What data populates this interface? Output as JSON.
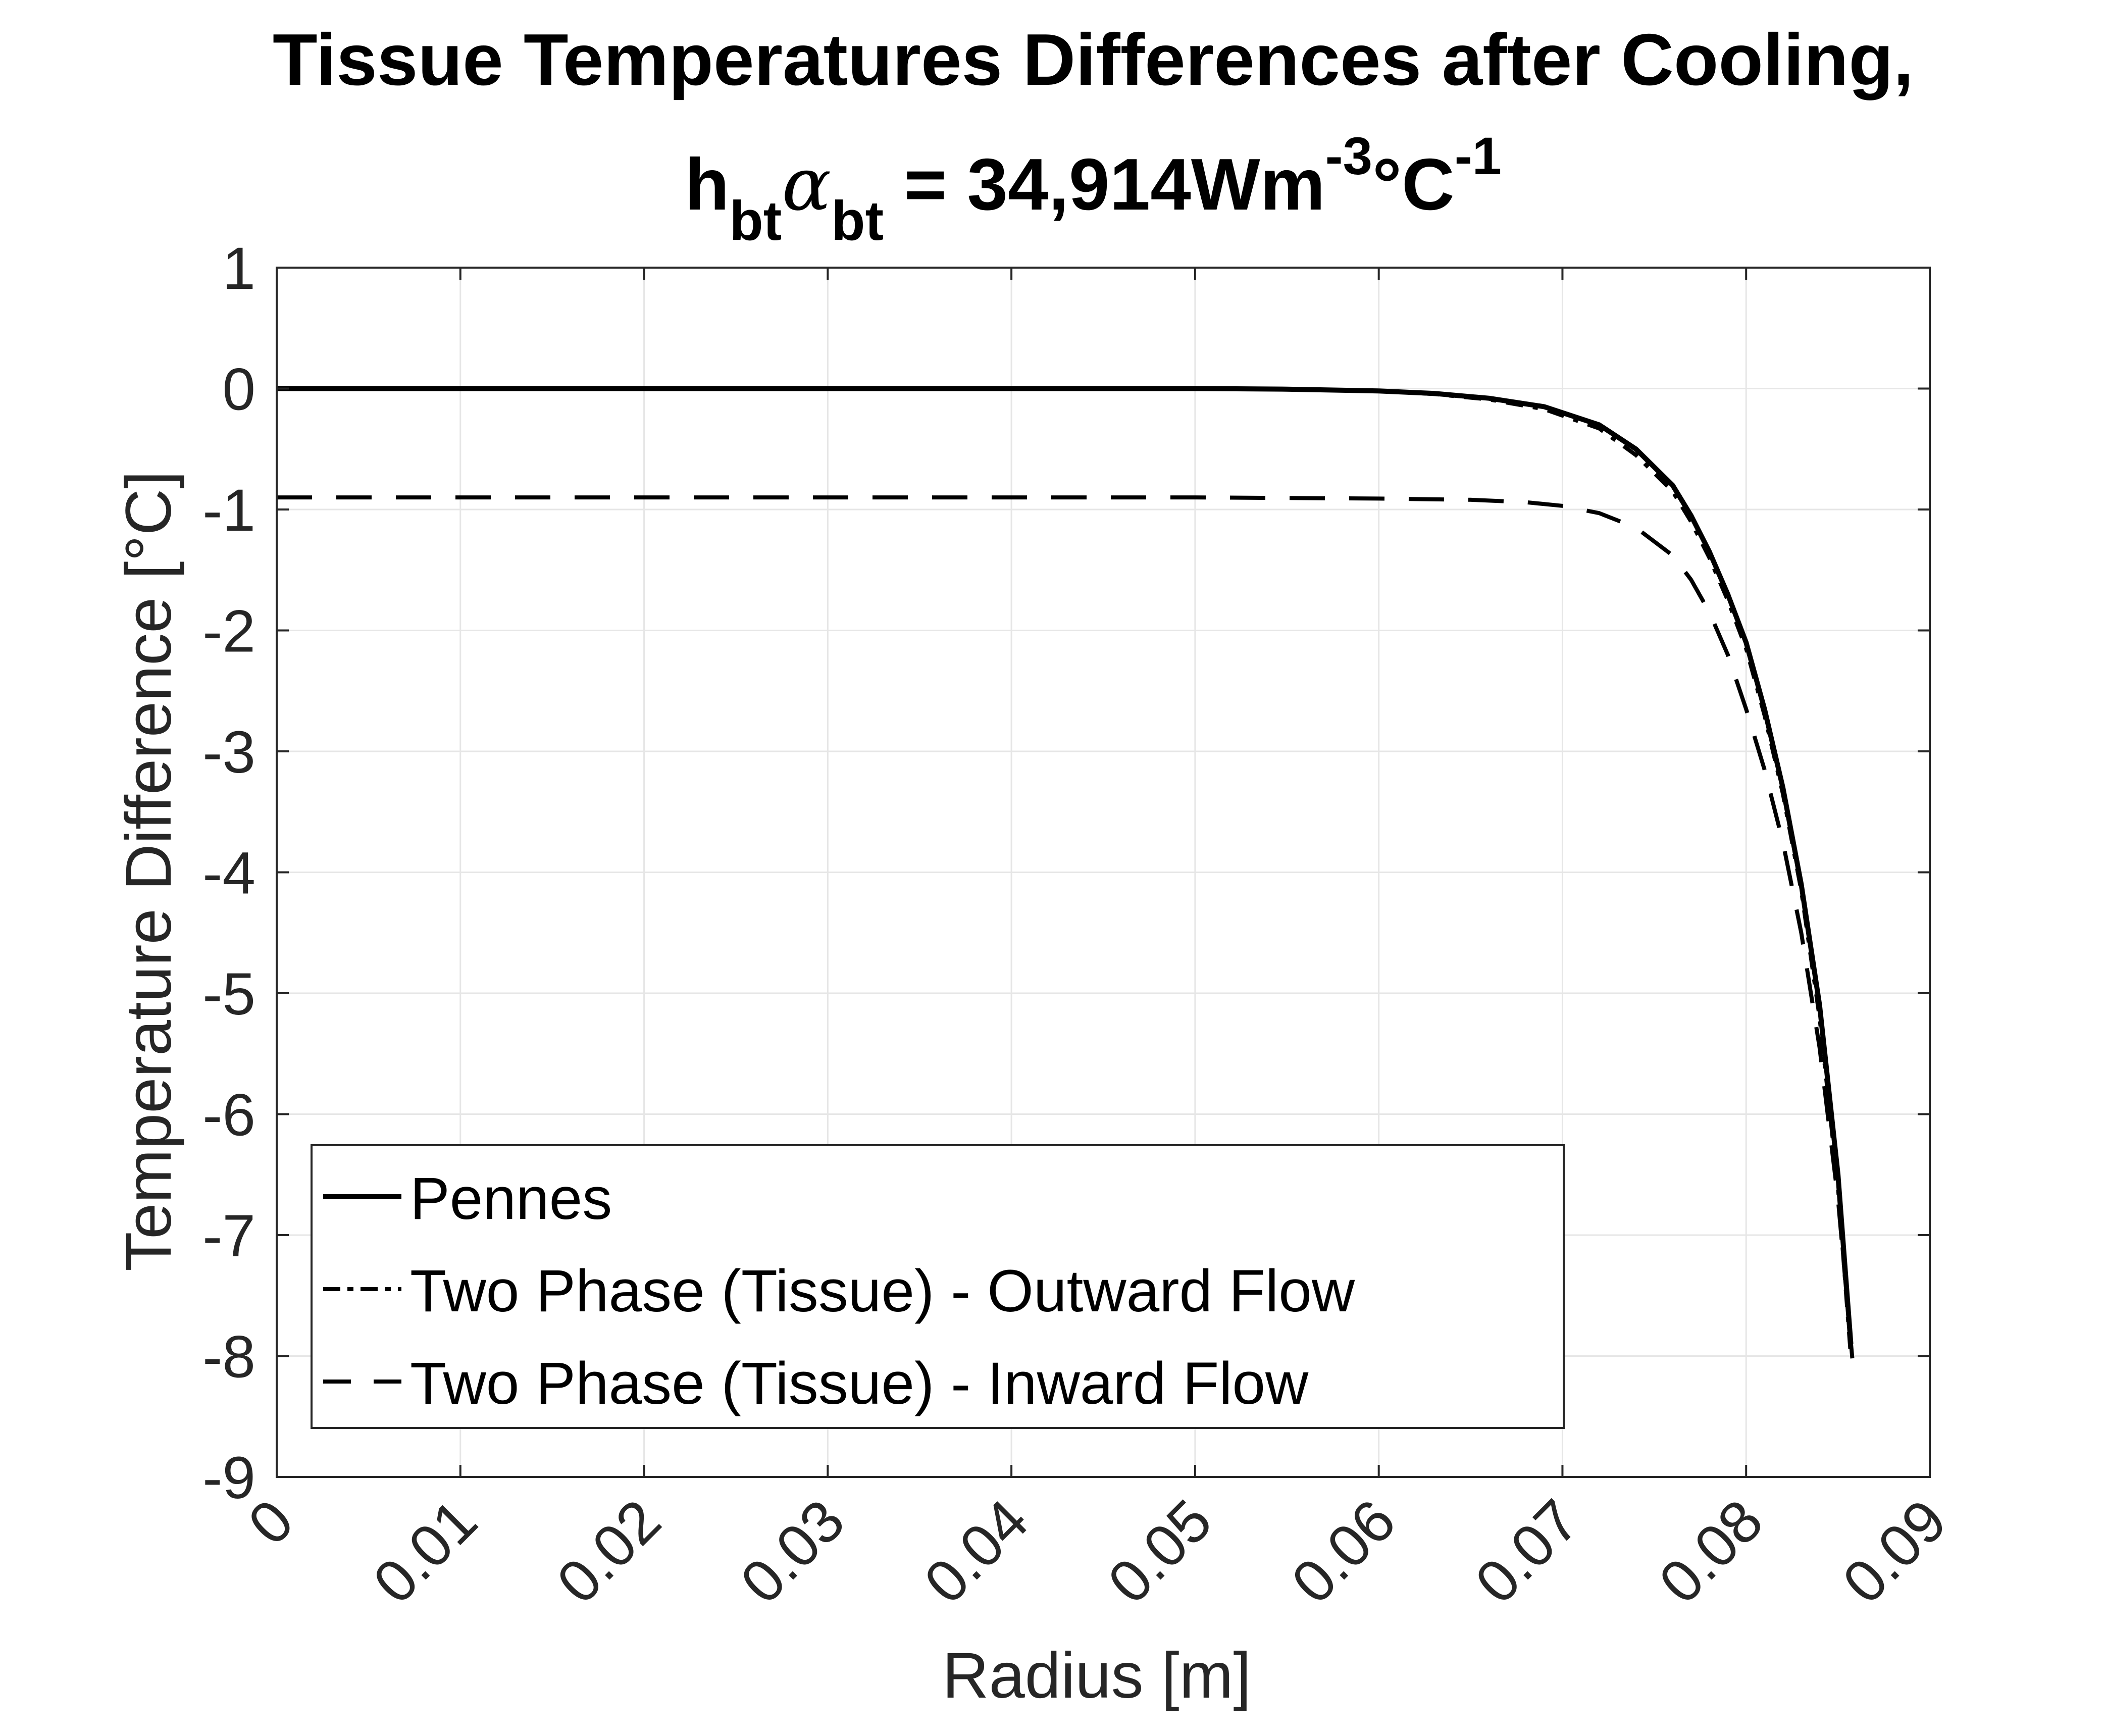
{
  "chart_data": {
    "type": "line",
    "title": {
      "line1": "Tissue Temperatures Differences after Cooling,",
      "h": "h",
      "h_sub": "bt",
      "alpha": "α",
      "alpha_sub": "bt",
      "eq": " = 34,914Wm",
      "exp1": "-3",
      "unit": "°C",
      "exp2": "-1"
    },
    "xlabel": "Radius [m]",
    "ylabel": "Temperature Difference [°C]",
    "xlim": [
      0,
      0.09
    ],
    "ylim": [
      -9,
      1
    ],
    "xticks": [
      "0",
      "0.01",
      "0.02",
      "0.03",
      "0.04",
      "0.05",
      "0.06",
      "0.07",
      "0.08",
      "0.09"
    ],
    "yticks": [
      "1",
      "0",
      "-1",
      "-2",
      "-3",
      "-4",
      "-5",
      "-6",
      "-7",
      "-8",
      "-9"
    ],
    "grid": true,
    "legend_position": "bottom-left",
    "series": [
      {
        "name": "Pennes",
        "style": "solid",
        "color": "#000000",
        "x": [
          0,
          0.05,
          0.055,
          0.06,
          0.063,
          0.066,
          0.069,
          0.072,
          0.074,
          0.076,
          0.077,
          0.078,
          0.079,
          0.08,
          0.081,
          0.082,
          0.083,
          0.084,
          0.085,
          0.0857
        ],
        "y": [
          0,
          0,
          -0.005,
          -0.02,
          -0.04,
          -0.08,
          -0.15,
          -0.3,
          -0.5,
          -0.8,
          -1.05,
          -1.35,
          -1.7,
          -2.1,
          -2.65,
          -3.3,
          -4.1,
          -5.1,
          -6.5,
          -7.9
        ]
      },
      {
        "name": "Two Phase (Tissue) - Outward Flow",
        "style": "dashdot",
        "color": "#000000",
        "x": [
          0,
          0.05,
          0.055,
          0.06,
          0.063,
          0.066,
          0.069,
          0.072,
          0.074,
          0.076,
          0.077,
          0.078,
          0.079,
          0.08,
          0.081,
          0.082,
          0.083,
          0.084,
          0.085,
          0.0857
        ],
        "y": [
          0,
          0,
          -0.005,
          -0.02,
          -0.045,
          -0.09,
          -0.17,
          -0.33,
          -0.55,
          -0.85,
          -1.1,
          -1.4,
          -1.75,
          -2.15,
          -2.7,
          -3.35,
          -4.15,
          -5.2,
          -6.6,
          -8.0
        ]
      },
      {
        "name": "Two Phase (Tissue) - Inward Flow",
        "style": "dashed",
        "color": "#000000",
        "x": [
          0,
          0.05,
          0.06,
          0.065,
          0.068,
          0.07,
          0.072,
          0.074,
          0.076,
          0.077,
          0.078,
          0.079,
          0.08,
          0.081,
          0.082,
          0.083,
          0.084,
          0.085,
          0.0858
        ],
        "y": [
          -0.9,
          -0.9,
          -0.91,
          -0.92,
          -0.94,
          -0.97,
          -1.03,
          -1.15,
          -1.38,
          -1.58,
          -1.85,
          -2.2,
          -2.65,
          -3.15,
          -3.75,
          -4.5,
          -5.45,
          -6.7,
          -8.05
        ]
      }
    ]
  }
}
